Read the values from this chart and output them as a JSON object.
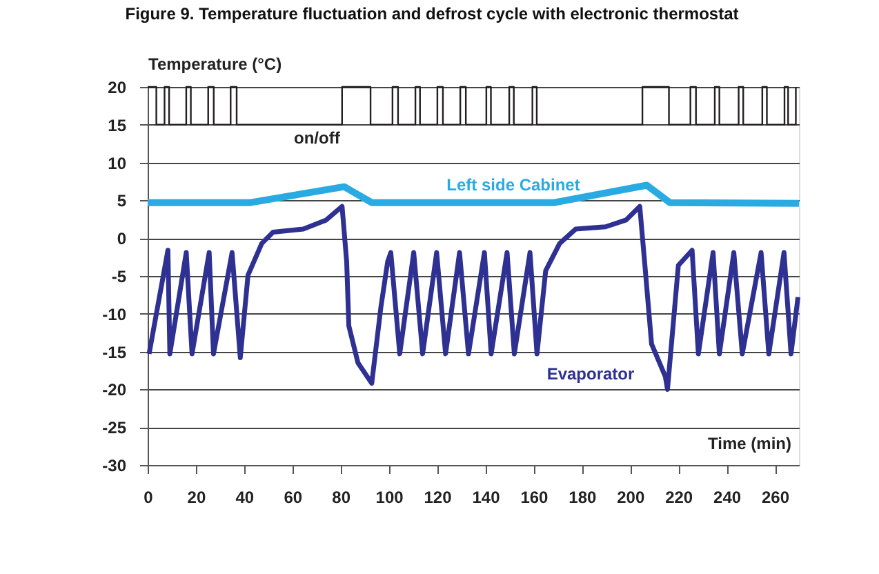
{
  "chart_data": {
    "type": "line",
    "title": "Figure 9. Temperature fluctuation and defrost cycle with electronic thermostat",
    "xlabel": "Time (min)",
    "ylabel": "Temperature (°C)",
    "xlim": [
      0,
      270
    ],
    "xticks": [
      0,
      20,
      40,
      60,
      80,
      100,
      120,
      140,
      160,
      180,
      200,
      220,
      240,
      260
    ],
    "ylim": [
      -30,
      20
    ],
    "yticks": [
      -30,
      -25,
      -20,
      -15,
      -10,
      -5,
      0,
      5,
      10,
      15,
      20
    ],
    "grid": "y",
    "legend": false,
    "marker": "none",
    "line_style": "solid",
    "series": [
      {
        "name": "on/off",
        "type": "step",
        "color": "#231f20",
        "x": [
          0,
          3.6,
          7.0,
          8.9,
          16,
          17.9,
          25.1,
          27.4,
          34.4,
          36.9,
          80.6,
          92.4,
          101.5,
          103.8,
          111,
          112.9,
          120.1,
          122.4,
          129.6,
          131.9,
          140.4,
          142.3,
          149.9,
          151.8,
          159.5,
          161.3,
          205.1,
          216.1,
          225,
          227.3,
          235.1,
          237,
          245,
          246.9,
          254.8,
          256.7,
          264,
          265.5,
          268.7
        ],
        "values": [
          20,
          15,
          20,
          15,
          20,
          15,
          20,
          15,
          20,
          15,
          20,
          15,
          20,
          15,
          20,
          15,
          20,
          15,
          20,
          15,
          20,
          15,
          20,
          15,
          20,
          15,
          20,
          15,
          20,
          15,
          20,
          15,
          20,
          15,
          20,
          15,
          20,
          15,
          20
        ]
      },
      {
        "name": "Left side Cabinet",
        "color": "#29abe2",
        "x": [
          0,
          42.6,
          81.5,
          92.9,
          168.6,
          206.9,
          216.5,
          270
        ],
        "values": [
          4.7,
          4.7,
          6.8,
          4.7,
          4.7,
          7,
          4.7,
          4.6
        ]
      },
      {
        "name": "Evaporator",
        "color": "#2e3192",
        "x": [
          0.6,
          8.4,
          9.2,
          16,
          18.4,
          25.5,
          27.3,
          35,
          38.4,
          41.6,
          47.3,
          52,
          64.5,
          74,
          80.6,
          82.5,
          83.4,
          87.2,
          92.9,
          96.7,
          99.5,
          100.8,
          104.5,
          110.3,
          114,
          119.8,
          123.5,
          129.3,
          133,
          139.6,
          142.4,
          149,
          152,
          158.5,
          161.4,
          165,
          170.8,
          177.4,
          189.8,
          198.3,
          204,
          206,
          208.9,
          214.6,
          215.5,
          220,
          225.7,
          228.3,
          234.4,
          237,
          243,
          246.5,
          254.3,
          257.5,
          263.8,
          266.7,
          269.6
        ],
        "values": [
          -15.3,
          -1.6,
          -15.3,
          -1.9,
          -15.3,
          -1.9,
          -15.3,
          -1.9,
          -15.8,
          -4.9,
          -0.7,
          0.8,
          1.2,
          2.4,
          4.2,
          -3.1,
          -11.6,
          -16.5,
          -19.2,
          -9.1,
          -3.1,
          -1.9,
          -15.3,
          -1.9,
          -15.3,
          -1.9,
          -15.3,
          -1.9,
          -15.3,
          -1.9,
          -15.3,
          -1.9,
          -15.3,
          -1.9,
          -15.3,
          -4.3,
          -0.7,
          1.2,
          1.5,
          2.4,
          4.2,
          -3.1,
          -14,
          -18.3,
          -20,
          -3.6,
          -1.6,
          -15.3,
          -1.9,
          -15.3,
          -1.9,
          -15.3,
          -1.9,
          -15.3,
          -1.9,
          -15.3,
          -7.8
        ]
      }
    ]
  }
}
